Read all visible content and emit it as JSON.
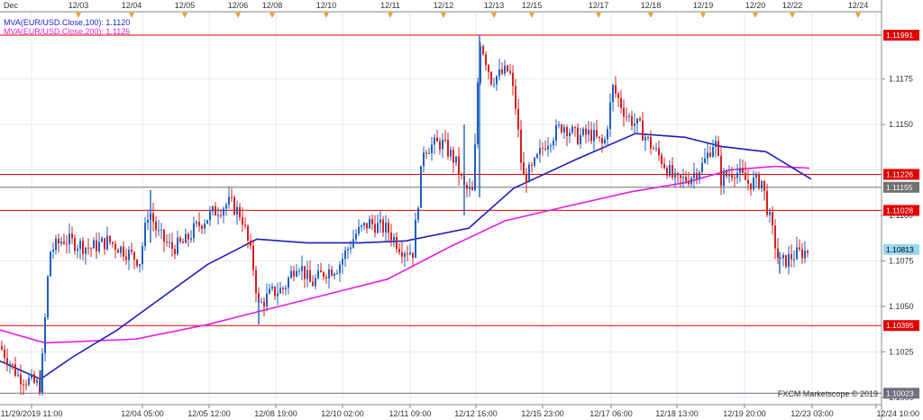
{
  "chart_data": {
    "type": "candlestick",
    "symbol": "EUR/USD",
    "watermark": "FXCM Marketscope © 2019",
    "indicators": [
      {
        "name": "MVA(EUR/USD.Close,100)",
        "value": "1.1120",
        "color": "#1f1fbf"
      },
      {
        "name": "MVA(EUR/USD.Close,200)",
        "value": "1.1126",
        "color": "#e61ee6"
      }
    ],
    "ylim": [
      1.0996,
      1.1212
    ],
    "y_ticks": [
      "1.1175",
      "1.1150",
      "1.1100",
      "1.1075",
      "1.1050",
      "1.1025",
      "1.1000"
    ],
    "top_labels": [
      "Dec",
      "12/03",
      "12/04",
      "12/05",
      "12/06",
      "12/08",
      "12/10",
      "12/11",
      "12/12",
      "12/13",
      "12/15",
      "12/17",
      "12/18",
      "12/19",
      "12/20",
      "12/22",
      "12/24"
    ],
    "bottom_labels": [
      "11/29/2019 11:00",
      "12/04 05:00",
      "12/05 12:00",
      "12/08 19:00",
      "12/10 02:00",
      "12/11 09:00",
      "12/12 16:00",
      "12/15 23:00",
      "12/17 06:00",
      "12/18 13:00",
      "12/19 20:00",
      "12/23 03:00",
      "12/24 10:00"
    ],
    "horizontal_lines": [
      {
        "price": 1.11991,
        "label": "1.11991",
        "color": "#e00000"
      },
      {
        "price": 1.11226,
        "label": "1.11226",
        "color": "#e00000"
      },
      {
        "price": 1.11155,
        "label": "1.11155",
        "color": "#707070"
      },
      {
        "price": 1.11028,
        "label": "1.11028",
        "color": "#e00000"
      },
      {
        "price": 1.10395,
        "label": "1.10395",
        "color": "#e00000"
      },
      {
        "price": 1.10023,
        "label": "1.10023",
        "color": "#707080"
      }
    ],
    "current_price": {
      "value": 1.10813,
      "label": "1.10813",
      "color": "#9ad7f0"
    },
    "path_keypoints": [
      [
        0,
        1.1028
      ],
      [
        20,
        1.1012
      ],
      [
        45,
        1.1006
      ],
      [
        55,
        1.108
      ],
      [
        70,
        1.1087
      ],
      [
        100,
        1.1082
      ],
      [
        120,
        1.1086
      ],
      [
        140,
        1.108
      ],
      [
        155,
        1.1075
      ],
      [
        165,
        1.1104
      ],
      [
        175,
        1.109
      ],
      [
        190,
        1.1082
      ],
      [
        205,
        1.1085
      ],
      [
        215,
        1.1092
      ],
      [
        225,
        1.1097
      ],
      [
        240,
        1.1103
      ],
      [
        255,
        1.1107
      ],
      [
        268,
        1.11
      ],
      [
        280,
        1.1075
      ],
      [
        287,
        1.105
      ],
      [
        300,
        1.1057
      ],
      [
        315,
        1.106
      ],
      [
        330,
        1.1075
      ],
      [
        345,
        1.1062
      ],
      [
        360,
        1.1069
      ],
      [
        375,
        1.1072
      ],
      [
        395,
        1.109
      ],
      [
        410,
        1.1096
      ],
      [
        430,
        1.1092
      ],
      [
        445,
        1.1082
      ],
      [
        458,
        1.108
      ],
      [
        470,
        1.1137
      ],
      [
        490,
        1.114
      ],
      [
        505,
        1.113
      ],
      [
        515,
        1.1115
      ],
      [
        525,
        1.1112
      ],
      [
        532,
        1.1198
      ],
      [
        545,
        1.1175
      ],
      [
        565,
        1.118
      ],
      [
        572,
        1.116
      ],
      [
        580,
        1.112
      ],
      [
        590,
        1.1125
      ],
      [
        605,
        1.114
      ],
      [
        625,
        1.115
      ],
      [
        640,
        1.1143
      ],
      [
        655,
        1.1145
      ],
      [
        670,
        1.1138
      ],
      [
        680,
        1.117
      ],
      [
        695,
        1.1155
      ],
      [
        710,
        1.1148
      ],
      [
        720,
        1.114
      ],
      [
        735,
        1.113
      ],
      [
        750,
        1.1118
      ],
      [
        765,
        1.1121
      ],
      [
        780,
        1.1128
      ],
      [
        793,
        1.1142
      ],
      [
        800,
        1.112
      ],
      [
        815,
        1.1125
      ],
      [
        830,
        1.1118
      ],
      [
        845,
        1.1119
      ],
      [
        852,
        1.1102
      ],
      [
        865,
        1.1073
      ],
      [
        880,
        1.1078
      ],
      [
        898,
        1.1081
      ]
    ],
    "ma100": [
      [
        0,
        1.102
      ],
      [
        45,
        1.101
      ],
      [
        80,
        1.1022
      ],
      [
        130,
        1.1037
      ],
      [
        180,
        1.1055
      ],
      [
        230,
        1.1073
      ],
      [
        285,
        1.1087
      ],
      [
        340,
        1.1085
      ],
      [
        400,
        1.1085
      ],
      [
        450,
        1.1086
      ],
      [
        520,
        1.1093
      ],
      [
        570,
        1.1115
      ],
      [
        640,
        1.1131
      ],
      [
        705,
        1.1145
      ],
      [
        760,
        1.1143
      ],
      [
        800,
        1.1138
      ],
      [
        850,
        1.1135
      ],
      [
        900,
        1.112
      ]
    ],
    "ma200": [
      [
        0,
        1.1037
      ],
      [
        50,
        1.103
      ],
      [
        150,
        1.1032
      ],
      [
        230,
        1.104
      ],
      [
        285,
        1.1047
      ],
      [
        350,
        1.1055
      ],
      [
        430,
        1.1065
      ],
      [
        500,
        1.1083
      ],
      [
        560,
        1.1097
      ],
      [
        620,
        1.1104
      ],
      [
        700,
        1.1113
      ],
      [
        760,
        1.1118
      ],
      [
        810,
        1.1125
      ],
      [
        860,
        1.1127
      ],
      [
        898,
        1.1126
      ]
    ]
  }
}
